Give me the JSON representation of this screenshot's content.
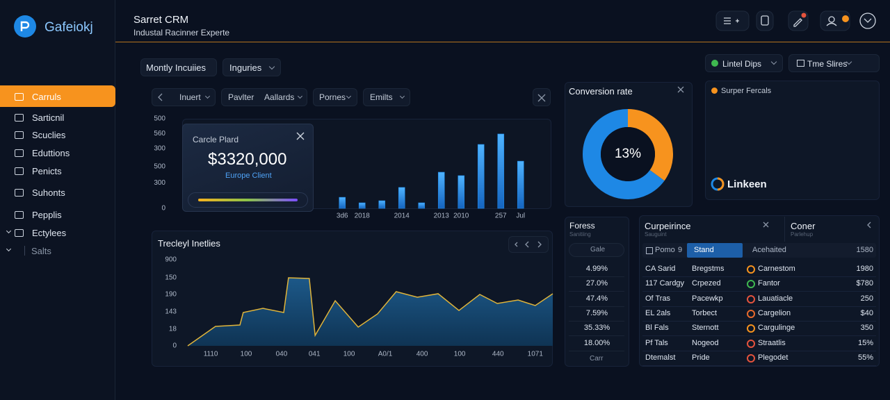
{
  "brand": "Gafeiokj",
  "header": {
    "title": "Sarret CRM",
    "subtitle": "Industal Racinner Experte"
  },
  "sidebar": {
    "active": 0,
    "items": [
      "Carruls",
      "Sarticnil",
      "Scuclies",
      "Eduttions",
      "Penicts",
      "Suhonts",
      "Pepplis",
      "Ectylees",
      "Salts"
    ]
  },
  "filters": {
    "left": [
      "Montly Incuiies",
      "Inguries"
    ],
    "right": [
      "Lintel Dips",
      "Tme Slires"
    ]
  },
  "bar_panel": {
    "tabs": [
      "Inuert",
      "Pavlter Aallards",
      "Pornes",
      "Emilts"
    ]
  },
  "popup": {
    "title": "Carcle Plard",
    "amount": "$3320,000",
    "subtitle": "Europe Client"
  },
  "legend_panel": {
    "label": "Surper Fercals",
    "brand": "Linkeen"
  },
  "stats": {
    "title": "Foress",
    "subtitle": "Sanitiing",
    "search": "Gale",
    "rows": [
      "4.99%",
      "27.0%",
      "47.4%",
      "7.59%",
      "35.33%",
      "18.00%"
    ],
    "footer": "Carr"
  },
  "table": {
    "title": "Curpeirince",
    "subtitle": "Sauguint",
    "side_title": "Coner",
    "side_subtitle": "Parlehup",
    "header": [
      "Pomo",
      "9",
      "Stand",
      "Acehaited",
      "1580"
    ],
    "rows": [
      [
        "CA Sarid",
        "Bregstms",
        "Carnestom",
        "1980"
      ],
      [
        "117 Cardgy",
        "Crpezed",
        "Fantor",
        "$780"
      ],
      [
        "Of Tras",
        "Pacewkp",
        "Lauatiacle",
        "250"
      ],
      [
        "EL 2als",
        "Torbect",
        "Cargelion",
        "$40"
      ],
      [
        "Bl Fals",
        "Sternott",
        "Cargulinge",
        "350"
      ],
      [
        "Pf Tals",
        "Nogeod",
        "Straatlis",
        "15%"
      ],
      [
        "Dtemalst",
        "Pride",
        "Plegodet",
        "55%"
      ]
    ],
    "dot_colors": [
      "#f7931e",
      "#3fb950",
      "#e5533d",
      "#e86a2c",
      "#f7931e",
      "#e5533d",
      "#e5533d"
    ]
  },
  "chart_data": [
    {
      "type": "bar",
      "categories": [
        "3d6",
        "2018",
        null,
        "2014",
        null,
        "2013",
        "2010",
        null,
        "257",
        "Jul"
      ],
      "values": [
        74,
        37,
        51,
        140,
        37,
        242,
        219,
        428,
        498,
        316
      ],
      "color": "#1e88e5",
      "ylim": [
        0,
        600
      ],
      "yticks": [
        {
          "value": 600,
          "label": "500"
        },
        {
          "value": 500,
          "label": "560"
        },
        {
          "value": 400,
          "label": "300"
        },
        {
          "value": 280,
          "label": "500"
        },
        {
          "value": 170,
          "label": "300"
        },
        0
      ]
    },
    {
      "type": "area",
      "title": "Trecleyl Inetlies",
      "x": [
        0,
        7.6,
        14.3,
        15.2,
        20.6,
        26.3,
        27.6,
        33.3,
        34.9,
        40.4,
        46.7,
        52,
        57.1,
        62.9,
        68.6,
        74.3,
        80,
        84.8,
        90.5,
        95.2,
        100
      ],
      "values": [
        0,
        226,
        242,
        387,
        435,
        387,
        790,
        782,
        121,
        524,
        218,
        371,
        629,
        565,
        605,
        411,
        597,
        492,
        532,
        468,
        605
      ],
      "xlim": [
        0,
        100
      ],
      "ylim": [
        0,
        1000
      ],
      "color": "#17507d",
      "line_color": "#e0b43a",
      "xticks": [
        {
          "value": 6.3,
          "label": "1110"
        },
        {
          "value": 16,
          "label": "100"
        },
        {
          "value": 25.7,
          "label": "040"
        },
        {
          "value": 34.7,
          "label": "041"
        },
        {
          "value": 44.2,
          "label": "100"
        },
        {
          "value": 54.1,
          "label": "A0/1"
        },
        {
          "value": 64.2,
          "label": "400"
        },
        {
          "value": 74.5,
          "label": "100"
        },
        {
          "value": 85,
          "label": "440"
        },
        {
          "value": 95.2,
          "label": "1071"
        }
      ],
      "yticks": [
        {
          "value": 1000,
          "label": "900"
        },
        {
          "value": 790,
          "label": "150"
        },
        {
          "value": 597,
          "label": "190"
        },
        {
          "value": 395,
          "label": "143"
        },
        {
          "value": 194,
          "label": "18"
        },
        0
      ]
    },
    {
      "type": "pie",
      "title": "Conversion rate",
      "center_label": "13%",
      "values": [
        35,
        65
      ],
      "colors": [
        "#f7931e",
        "#1e88e5"
      ]
    }
  ]
}
